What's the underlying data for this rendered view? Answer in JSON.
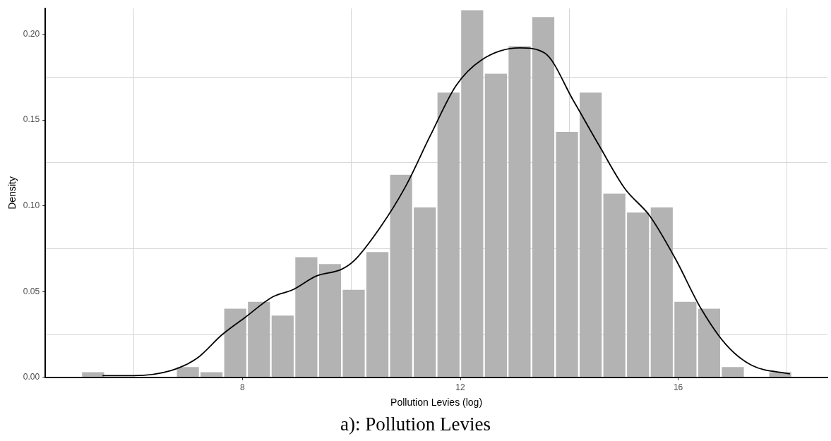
{
  "chart_data": {
    "type": "histogram",
    "title": "a): Pollution Levies",
    "xlabel": "Pollution Levies (log)",
    "ylabel": "Density",
    "bins": [
      5.04,
      5.475,
      5.91,
      6.345,
      6.78,
      7.215,
      7.65,
      8.085,
      8.52,
      8.955,
      9.39,
      9.825,
      10.26,
      10.695,
      11.13,
      11.565,
      12.0,
      12.435,
      12.87,
      13.305,
      13.74,
      14.175,
      14.61,
      15.045,
      15.48,
      15.915,
      16.35,
      16.785,
      17.22,
      17.655,
      18.09
    ],
    "values": [
      0.003,
      0,
      0,
      0,
      0.006,
      0.003,
      0.04,
      0.044,
      0.036,
      0.07,
      0.066,
      0.051,
      0.073,
      0.118,
      0.099,
      0.166,
      0.214,
      0.177,
      0.193,
      0.21,
      0.143,
      0.166,
      0.107,
      0.096,
      0.099,
      0.044,
      0.04,
      0.006,
      0,
      0.003
    ],
    "color": "#b3b3b3",
    "series": [
      {
        "type": "line",
        "color": "#000000",
        "x": [
          5.43,
          6.0,
          6.69,
          7.16,
          7.63,
          8.05,
          8.56,
          8.92,
          9.35,
          9.82,
          10.05,
          10.52,
          10.99,
          11.45,
          11.92,
          12.39,
          13.09,
          13.55,
          14.08,
          14.55,
          15.02,
          15.48,
          15.95,
          16.42,
          16.88,
          17.35,
          18.05
        ],
        "values": [
          0.001,
          0.001,
          0.004,
          0.011,
          0.025,
          0.035,
          0.047,
          0.051,
          0.059,
          0.063,
          0.068,
          0.087,
          0.111,
          0.141,
          0.17,
          0.185,
          0.192,
          0.189,
          0.161,
          0.135,
          0.11,
          0.094,
          0.069,
          0.04,
          0.019,
          0.007,
          0.002
        ]
      }
    ],
    "marker": "none",
    "line_style": "solid",
    "grid": true,
    "legend": false,
    "xlim": [
      4.38,
      18.74
    ],
    "xticks": [
      {
        "value": 6,
        "label": null
      },
      8,
      {
        "value": 10,
        "label": null
      },
      12,
      {
        "value": 14,
        "label": null
      },
      16,
      {
        "value": 18,
        "label": null
      }
    ],
    "ylim": [
      0,
      0.215
    ],
    "yticks": [
      {
        "value": 0,
        "label": "0.00"
      },
      {
        "value": 0.025,
        "label": null
      },
      {
        "value": 0.05,
        "label": "0.05"
      },
      {
        "value": 0.075,
        "label": null
      },
      {
        "value": 0.1,
        "label": "0.10"
      },
      {
        "value": 0.125,
        "label": null
      },
      {
        "value": 0.15,
        "label": "0.15"
      },
      {
        "value": 0.175,
        "label": null
      },
      {
        "value": 0.2,
        "label": "0.20"
      }
    ]
  }
}
